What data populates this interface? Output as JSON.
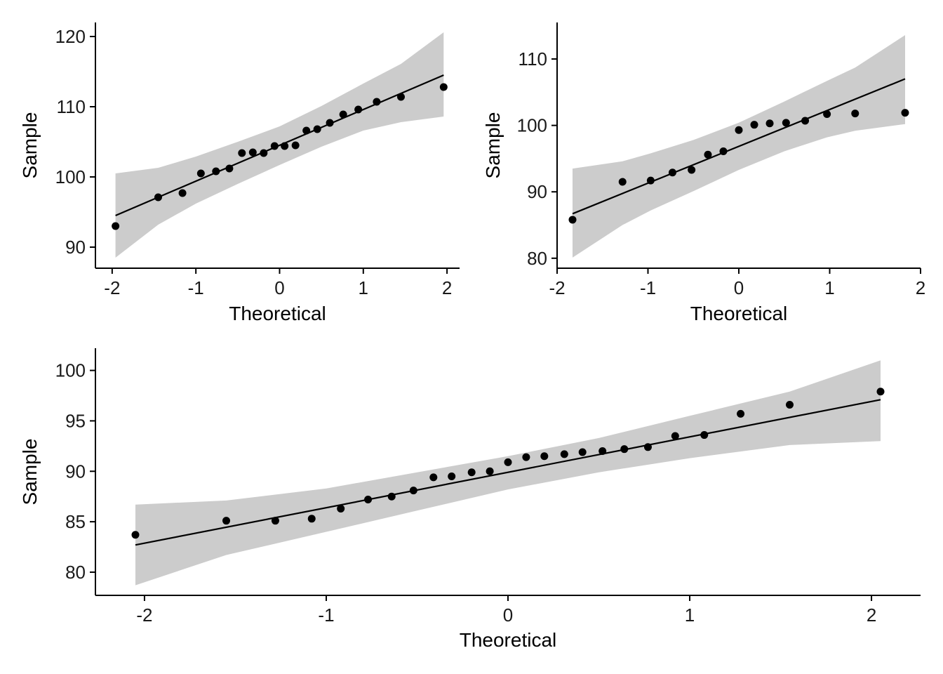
{
  "colors": {
    "band": "#cccccc",
    "line": "#000000",
    "point": "#000000",
    "axis": "#000000"
  },
  "chart_data": [
    {
      "type": "scatter",
      "kind": "qq-plot",
      "xlabel": "Theoretical",
      "ylabel": "Sample",
      "xlim": [
        -2.2,
        2.15
      ],
      "ylim": [
        87,
        122
      ],
      "xticks": [
        -2,
        -1,
        0,
        1,
        2
      ],
      "yticks": [
        90,
        100,
        110,
        120
      ],
      "grid": false,
      "points": {
        "x": [
          -1.96,
          -1.45,
          -1.16,
          -0.94,
          -0.76,
          -0.6,
          -0.45,
          -0.32,
          -0.19,
          -0.06,
          0.06,
          0.19,
          0.32,
          0.45,
          0.6,
          0.76,
          0.94,
          1.16,
          1.45,
          1.96
        ],
        "y": [
          93.0,
          97.1,
          97.7,
          100.5,
          100.8,
          101.2,
          103.4,
          103.5,
          103.4,
          104.4,
          104.4,
          104.5,
          106.6,
          106.8,
          107.7,
          108.9,
          109.6,
          110.7,
          111.4,
          112.8
        ]
      },
      "reference_line": {
        "x": [
          -1.96,
          1.96
        ],
        "y": [
          94.5,
          114.5
        ]
      },
      "confidence_band": {
        "x": [
          -1.96,
          -1.45,
          -1.0,
          -0.5,
          0.0,
          0.5,
          1.0,
          1.45,
          1.96
        ],
        "lower": [
          88.5,
          93.2,
          96.2,
          99.0,
          101.7,
          104.3,
          106.6,
          107.8,
          108.6
        ],
        "upper": [
          100.5,
          101.3,
          102.9,
          105.0,
          107.2,
          110.1,
          113.3,
          116.1,
          120.6
        ]
      }
    },
    {
      "type": "scatter",
      "kind": "qq-plot",
      "xlabel": "Theoretical",
      "ylabel": "Sample",
      "xlim": [
        -2.0,
        2.0
      ],
      "ylim": [
        78.5,
        115.5
      ],
      "xticks": [
        -2,
        -1,
        0,
        1,
        2
      ],
      "yticks": [
        80,
        90,
        100,
        110
      ],
      "grid": false,
      "points": {
        "x": [
          -1.83,
          -1.28,
          -0.97,
          -0.73,
          -0.52,
          -0.34,
          -0.17,
          0.0,
          0.17,
          0.34,
          0.52,
          0.73,
          0.97,
          1.28,
          1.83
        ],
        "y": [
          85.8,
          91.5,
          91.7,
          92.9,
          93.3,
          95.6,
          96.1,
          99.3,
          100.1,
          100.3,
          100.4,
          100.7,
          101.7,
          101.8,
          101.9
        ]
      },
      "reference_line": {
        "x": [
          -1.83,
          1.83
        ],
        "y": [
          86.7,
          107.0
        ]
      },
      "confidence_band": {
        "x": [
          -1.83,
          -1.28,
          -0.97,
          -0.5,
          0.0,
          0.5,
          0.97,
          1.28,
          1.83
        ],
        "lower": [
          80.1,
          85.0,
          87.2,
          90.1,
          93.3,
          96.1,
          98.2,
          99.2,
          100.2
        ],
        "upper": [
          93.5,
          94.6,
          95.8,
          97.8,
          100.4,
          103.6,
          106.7,
          108.7,
          113.6
        ]
      }
    },
    {
      "type": "scatter",
      "kind": "qq-plot",
      "xlabel": "Theoretical",
      "ylabel": "Sample",
      "xlim": [
        -2.27,
        2.27
      ],
      "ylim": [
        77.7,
        102.2
      ],
      "xticks": [
        -2,
        -1,
        0,
        1,
        2
      ],
      "yticks": [
        80,
        85,
        90,
        95,
        100
      ],
      "grid": false,
      "points": {
        "x": [
          -2.05,
          -1.55,
          -1.28,
          -1.08,
          -0.92,
          -0.77,
          -0.64,
          -0.52,
          -0.41,
          -0.31,
          -0.2,
          -0.1,
          0.0,
          0.1,
          0.2,
          0.31,
          0.41,
          0.52,
          0.64,
          0.77,
          0.92,
          1.08,
          1.28,
          1.55,
          2.05
        ],
        "y": [
          83.7,
          85.1,
          85.1,
          85.3,
          86.3,
          87.2,
          87.5,
          88.1,
          89.4,
          89.5,
          89.9,
          90.0,
          90.9,
          91.4,
          91.5,
          91.7,
          91.9,
          92.0,
          92.2,
          92.4,
          93.5,
          93.6,
          95.7,
          96.6,
          97.9
        ]
      },
      "reference_line": {
        "x": [
          -2.05,
          2.05
        ],
        "y": [
          82.7,
          97.1
        ]
      },
      "confidence_band": {
        "x": [
          -2.05,
          -1.55,
          -1.0,
          -0.5,
          0.0,
          0.5,
          1.0,
          1.55,
          2.05
        ],
        "lower": [
          78.7,
          81.7,
          84.0,
          86.1,
          88.2,
          89.9,
          91.3,
          92.6,
          93.0
        ],
        "upper": [
          86.7,
          87.1,
          88.3,
          89.9,
          91.5,
          93.3,
          95.5,
          97.9,
          101.0
        ]
      }
    }
  ]
}
